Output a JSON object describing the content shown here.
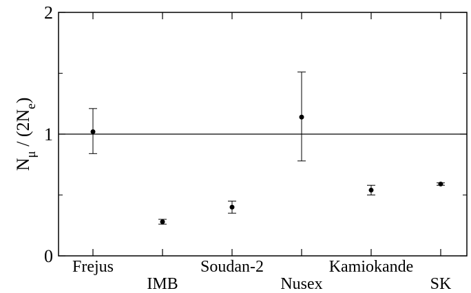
{
  "chart_data": {
    "type": "scatter",
    "title": "",
    "xlabel": "",
    "ylabel": {
      "base_n": "N",
      "sub_mu": "μ",
      "middle": " / (2N",
      "sub_e": "e",
      "close": ")"
    },
    "ylim": [
      0,
      2
    ],
    "yticks": [
      {
        "value": 0,
        "label": "0"
      },
      {
        "value": 1,
        "label": "1"
      },
      {
        "value": 2,
        "label": "2"
      }
    ],
    "y_minor_ticks": [
      0.5,
      1.5
    ],
    "reference_line": 1,
    "grid": false,
    "categories": [
      "Frejus",
      "IMB",
      "Soudan-2",
      "Nusex",
      "Kamiokande",
      "SK"
    ],
    "label_row": [
      "upper",
      "lower",
      "upper",
      "lower",
      "upper",
      "lower"
    ],
    "points": [
      {
        "category": "Frejus",
        "y": 1.02,
        "y_low": 0.84,
        "y_high": 1.21
      },
      {
        "category": "IMB",
        "y": 0.28,
        "y_low": 0.26,
        "y_high": 0.3
      },
      {
        "category": "Soudan-2",
        "y": 0.4,
        "y_low": 0.35,
        "y_high": 0.45
      },
      {
        "category": "Nusex",
        "y": 1.14,
        "y_low": 0.78,
        "y_high": 1.51
      },
      {
        "category": "Kamiokande",
        "y": 0.54,
        "y_low": 0.5,
        "y_high": 0.58
      },
      {
        "category": "SK",
        "y": 0.59,
        "y_low": 0.58,
        "y_high": 0.6
      }
    ]
  }
}
